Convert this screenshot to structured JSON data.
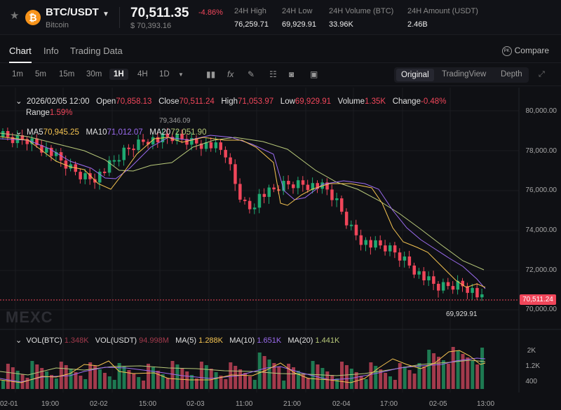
{
  "header": {
    "pair": "BTC/USDT",
    "coin_name": "Bitcoin",
    "coin_icon": "bitcoin-icon",
    "price": "70,511.35",
    "change": "-4.86%",
    "usd_price": "$ 70,393.16",
    "stats": [
      {
        "label": "24H High",
        "value": "76,259.71"
      },
      {
        "label": "24H Low",
        "value": "69,929.91"
      },
      {
        "label": "24H Volume (BTC)",
        "value": "33.96K"
      },
      {
        "label": "24H Amount (USDT)",
        "value": "2.46B"
      }
    ]
  },
  "tabs": [
    {
      "label": "Chart"
    },
    {
      "label": "Info"
    },
    {
      "label": "Trading Data"
    }
  ],
  "compare": {
    "icon": "PK",
    "label": "Compare"
  },
  "toolbar": {
    "intervals": [
      "1m",
      "5m",
      "15m",
      "30m",
      "1H",
      "4H",
      "1D"
    ],
    "active_interval": "1H",
    "views": [
      "Original",
      "TradingView",
      "Depth"
    ],
    "active_view": "Original"
  },
  "ohlc": {
    "date": "2026/02/05 12:00",
    "open_label": "Open",
    "open": "70,858.13",
    "close_label": "Close",
    "close": "70,511.24",
    "high_label": "High",
    "high": "71,053.97",
    "low_label": "Low",
    "low": "69,929.91",
    "volume_label": "Volume",
    "volume": "1.35K",
    "change_label": "Change",
    "change": "-0.48%",
    "range_label": "Range",
    "range": "1.59%"
  },
  "ma": {
    "ma5_label": "MA5",
    "ma5": "70,945.25",
    "ma10_label": "MA10",
    "ma10": "71,012.07",
    "ma20_label": "MA20",
    "ma20": "72,051.90"
  },
  "vol": {
    "btc_label": "VOL(BTC)",
    "btc": "1.348K",
    "usdt_label": "VOL(USDT)",
    "usdt": "94.998M",
    "ma5_label": "MA(5)",
    "ma5": "1.288K",
    "ma10_label": "MA(10)",
    "ma10": "1.651K",
    "ma20_label": "MA(20)",
    "ma20": "1.441K"
  },
  "markers": {
    "high": "79,346.09",
    "low": "69,929.91",
    "last": "70,511.24"
  },
  "watermark": "MEXC",
  "colors": {
    "up": "#1fa971",
    "down": "#f0465a",
    "ma5": "#f5c451",
    "ma10": "#9c6cf0",
    "ma20": "#b8c97a",
    "bg": "#0f1014"
  },
  "chart_data": {
    "type": "candlestick",
    "title": "BTC/USDT 1H",
    "yaxis": {
      "ticks": [
        "80,000.00",
        "78,000.00",
        "76,000.00",
        "74,000.00",
        "72,000.00",
        "70,000.00"
      ],
      "range": [
        69500,
        80500
      ]
    },
    "vol_axis": {
      "ticks": [
        "2K",
        "1.2K",
        "400"
      ]
    },
    "xaxis": {
      "ticks": [
        "02-01",
        "19:00",
        "02-02",
        "15:00",
        "02-03",
        "11:00",
        "21:00",
        "02-04",
        "17:00",
        "02-05",
        "13:00"
      ]
    },
    "last_price": 70511.24,
    "period_high": 79346.09,
    "period_low": 69929.91,
    "series": [
      {
        "name": "MA5",
        "last": 70945.25
      },
      {
        "name": "MA10",
        "last": 71012.07
      },
      {
        "name": "MA20",
        "last": 72051.9
      }
    ]
  }
}
